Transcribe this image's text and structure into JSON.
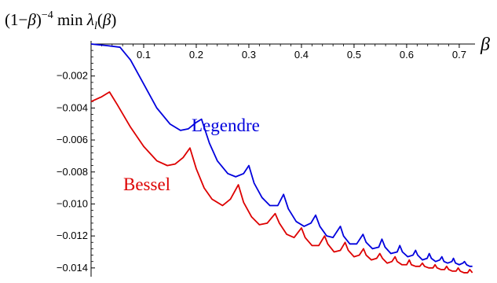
{
  "chart_data": {
    "type": "line",
    "ylabel_parts": {
      "base": "(1−",
      "beta1": "β",
      "close": ")",
      "exp": "−4",
      "min": " min ",
      "lambda": "λ",
      "sub": "l",
      "arg_open": "(",
      "beta2": "β",
      "arg_close": ")"
    },
    "xlabel": "β",
    "xlim": [
      0,
      0.73
    ],
    "ylim": [
      -0.0145,
      0.0003
    ],
    "x_ticks": [
      0.1,
      0.2,
      0.3,
      0.4,
      0.5,
      0.6,
      0.7
    ],
    "x_tick_labels": [
      "0.1",
      "0.2",
      "0.3",
      "0.4",
      "0.5",
      "0.6",
      "0.7"
    ],
    "y_ticks": [
      -0.002,
      -0.004,
      -0.006,
      -0.008,
      -0.01,
      -0.012,
      -0.014
    ],
    "y_tick_labels": [
      "−0.002",
      "−0.004",
      "−0.006",
      "−0.008",
      "−0.010",
      "−0.012",
      "−0.014"
    ],
    "series": [
      {
        "name": "Legendre",
        "color": "#0000dd",
        "points": [
          [
            0.0,
            0.0
          ],
          [
            0.03,
            -0.0001
          ],
          [
            0.055,
            -0.0002
          ],
          [
            0.075,
            -0.001
          ],
          [
            0.1,
            -0.0025
          ],
          [
            0.125,
            -0.004
          ],
          [
            0.15,
            -0.005
          ],
          [
            0.17,
            -0.0054
          ],
          [
            0.185,
            -0.0053
          ],
          [
            0.2,
            -0.0049
          ],
          [
            0.21,
            -0.0047
          ],
          [
            0.225,
            -0.0062
          ],
          [
            0.24,
            -0.0073
          ],
          [
            0.26,
            -0.0081
          ],
          [
            0.275,
            -0.0083
          ],
          [
            0.29,
            -0.0081
          ],
          [
            0.3,
            -0.0076
          ],
          [
            0.31,
            -0.0087
          ],
          [
            0.325,
            -0.0096
          ],
          [
            0.34,
            -0.0101
          ],
          [
            0.355,
            -0.0101
          ],
          [
            0.366,
            -0.0094
          ],
          [
            0.375,
            -0.0103
          ],
          [
            0.39,
            -0.0111
          ],
          [
            0.405,
            -0.0114
          ],
          [
            0.418,
            -0.0112
          ],
          [
            0.427,
            -0.0107
          ],
          [
            0.435,
            -0.0114
          ],
          [
            0.448,
            -0.012
          ],
          [
            0.46,
            -0.0121
          ],
          [
            0.474,
            -0.0114
          ],
          [
            0.48,
            -0.012
          ],
          [
            0.492,
            -0.0125
          ],
          [
            0.505,
            -0.0125
          ],
          [
            0.517,
            -0.0119
          ],
          [
            0.523,
            -0.0124
          ],
          [
            0.535,
            -0.0128
          ],
          [
            0.547,
            -0.0127
          ],
          [
            0.553,
            -0.0122
          ],
          [
            0.559,
            -0.0127
          ],
          [
            0.57,
            -0.0131
          ],
          [
            0.582,
            -0.013
          ],
          [
            0.587,
            -0.0126
          ],
          [
            0.592,
            -0.013
          ],
          [
            0.602,
            -0.0133
          ],
          [
            0.612,
            -0.0132
          ],
          [
            0.617,
            -0.0129
          ],
          [
            0.621,
            -0.0132
          ],
          [
            0.63,
            -0.0135
          ],
          [
            0.639,
            -0.0134
          ],
          [
            0.643,
            -0.0131
          ],
          [
            0.647,
            -0.0134
          ],
          [
            0.655,
            -0.0136
          ],
          [
            0.663,
            -0.0135
          ],
          [
            0.667,
            -0.0133
          ],
          [
            0.671,
            -0.0136
          ],
          [
            0.678,
            -0.0137
          ],
          [
            0.686,
            -0.0136
          ],
          [
            0.689,
            -0.0134
          ],
          [
            0.693,
            -0.0137
          ],
          [
            0.7,
            -0.0138
          ],
          [
            0.707,
            -0.0137
          ],
          [
            0.71,
            -0.0136
          ],
          [
            0.714,
            -0.0138
          ],
          [
            0.72,
            -0.0139
          ],
          [
            0.725,
            -0.0139
          ]
        ]
      },
      {
        "name": "Bessel",
        "color": "#dd0000",
        "points": [
          [
            0.0,
            -0.0036
          ],
          [
            0.02,
            -0.0033
          ],
          [
            0.035,
            -0.003
          ],
          [
            0.05,
            -0.0038
          ],
          [
            0.075,
            -0.0052
          ],
          [
            0.1,
            -0.0064
          ],
          [
            0.125,
            -0.0073
          ],
          [
            0.145,
            -0.0076
          ],
          [
            0.16,
            -0.0075
          ],
          [
            0.175,
            -0.0071
          ],
          [
            0.188,
            -0.0065
          ],
          [
            0.2,
            -0.0078
          ],
          [
            0.215,
            -0.009
          ],
          [
            0.23,
            -0.0097
          ],
          [
            0.25,
            -0.0101
          ],
          [
            0.265,
            -0.0097
          ],
          [
            0.28,
            -0.0088
          ],
          [
            0.29,
            -0.0099
          ],
          [
            0.305,
            -0.0108
          ],
          [
            0.32,
            -0.0113
          ],
          [
            0.335,
            -0.0112
          ],
          [
            0.35,
            -0.0106
          ],
          [
            0.358,
            -0.0112
          ],
          [
            0.372,
            -0.0119
          ],
          [
            0.386,
            -0.0121
          ],
          [
            0.4,
            -0.0115
          ],
          [
            0.407,
            -0.0121
          ],
          [
            0.42,
            -0.0126
          ],
          [
            0.433,
            -0.0126
          ],
          [
            0.444,
            -0.012
          ],
          [
            0.45,
            -0.0125
          ],
          [
            0.462,
            -0.013
          ],
          [
            0.474,
            -0.0129
          ],
          [
            0.483,
            -0.0124
          ],
          [
            0.489,
            -0.0129
          ],
          [
            0.5,
            -0.0133
          ],
          [
            0.51,
            -0.0132
          ],
          [
            0.518,
            -0.0128
          ],
          [
            0.523,
            -0.0132
          ],
          [
            0.533,
            -0.0135
          ],
          [
            0.543,
            -0.0134
          ],
          [
            0.549,
            -0.0131
          ],
          [
            0.554,
            -0.0134
          ],
          [
            0.563,
            -0.0137
          ],
          [
            0.572,
            -0.0136
          ],
          [
            0.578,
            -0.0133
          ],
          [
            0.582,
            -0.0136
          ],
          [
            0.591,
            -0.0138
          ],
          [
            0.6,
            -0.0138
          ],
          [
            0.605,
            -0.0135
          ],
          [
            0.609,
            -0.0138
          ],
          [
            0.617,
            -0.0139
          ],
          [
            0.625,
            -0.0139
          ],
          [
            0.63,
            -0.0137
          ],
          [
            0.634,
            -0.0139
          ],
          [
            0.642,
            -0.014
          ],
          [
            0.65,
            -0.014
          ],
          [
            0.654,
            -0.0138
          ],
          [
            0.658,
            -0.014
          ],
          [
            0.665,
            -0.0141
          ],
          [
            0.672,
            -0.0141
          ],
          [
            0.676,
            -0.0139
          ],
          [
            0.68,
            -0.0141
          ],
          [
            0.687,
            -0.0142
          ],
          [
            0.694,
            -0.0142
          ],
          [
            0.698,
            -0.014
          ],
          [
            0.702,
            -0.0142
          ],
          [
            0.709,
            -0.0143
          ],
          [
            0.716,
            -0.0143
          ],
          [
            0.72,
            -0.0141
          ],
          [
            0.725,
            -0.0143
          ]
        ]
      }
    ],
    "series_labels": [
      {
        "text": "Legendre",
        "color": "#0000dd"
      },
      {
        "text": "Bessel",
        "color": "#dd0000"
      }
    ]
  }
}
